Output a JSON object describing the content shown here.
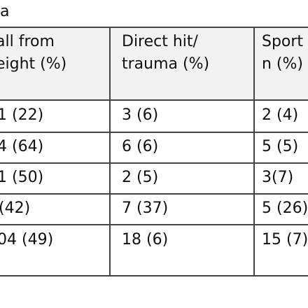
{
  "table": {
    "caption": "na",
    "headers": [
      {
        "line1": "all from",
        "line2": "eight (%)"
      },
      {
        "line1": "Direct hit/",
        "line2": "trauma (%)"
      },
      {
        "line1": "Sport",
        "line2": "n (%)"
      }
    ],
    "rows": [
      [
        "1 (22)",
        "3 (6)",
        "2 (4)"
      ],
      [
        "4 (64)",
        "6 (6)",
        "5 (5)"
      ],
      [
        "1 (50)",
        "2 (5)",
        "3(7)"
      ],
      [
        "(42)",
        "7 (37)",
        "5 (26)"
      ],
      [
        "04 (49)",
        "18 (6)",
        "15 (7)"
      ]
    ]
  }
}
